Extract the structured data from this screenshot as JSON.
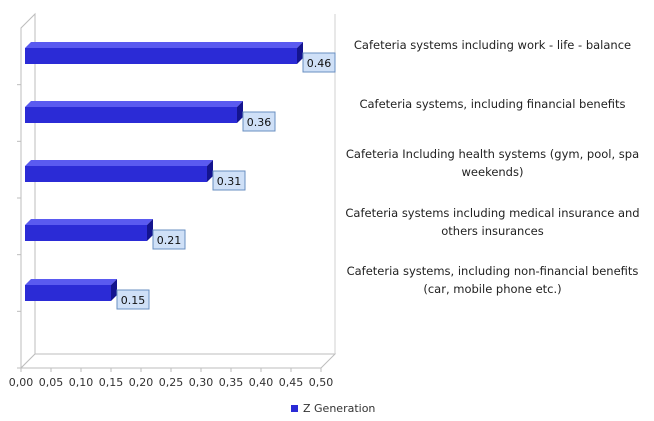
{
  "chart_data": {
    "type": "bar",
    "orientation": "horizontal",
    "categories": [
      "Cafeteria systems including work - life - balance",
      "Cafeteria systems, including financial benefits",
      "Cafeteria Including health systems (gym, pool, spa weekends)",
      "Cafeteria systems including medical insurance  and others insurances",
      "Cafeteria systems, including non-financial benefits (car, mobile phone etc.)"
    ],
    "series": [
      {
        "name": "Z Generation",
        "values": [
          0.46,
          0.36,
          0.31,
          0.21,
          0.15
        ]
      }
    ],
    "data_labels": [
      "0.46",
      "0.36",
      "0.31",
      "0.21",
      "0.15"
    ],
    "xlim": [
      0,
      0.5
    ],
    "x_ticks": [
      "0,00",
      "0,05",
      "0,10",
      "0,15",
      "0,20",
      "0,25",
      "0,30",
      "0,35",
      "0,40",
      "0,45",
      "0,50"
    ],
    "legend_position": "bottom",
    "colors": {
      "bar": "#2b2bd6",
      "bar_dark": "#14148f",
      "bar_top": "#5a5af0",
      "label_box": "#cfe0f7",
      "label_border": "#6a8fc0"
    }
  }
}
